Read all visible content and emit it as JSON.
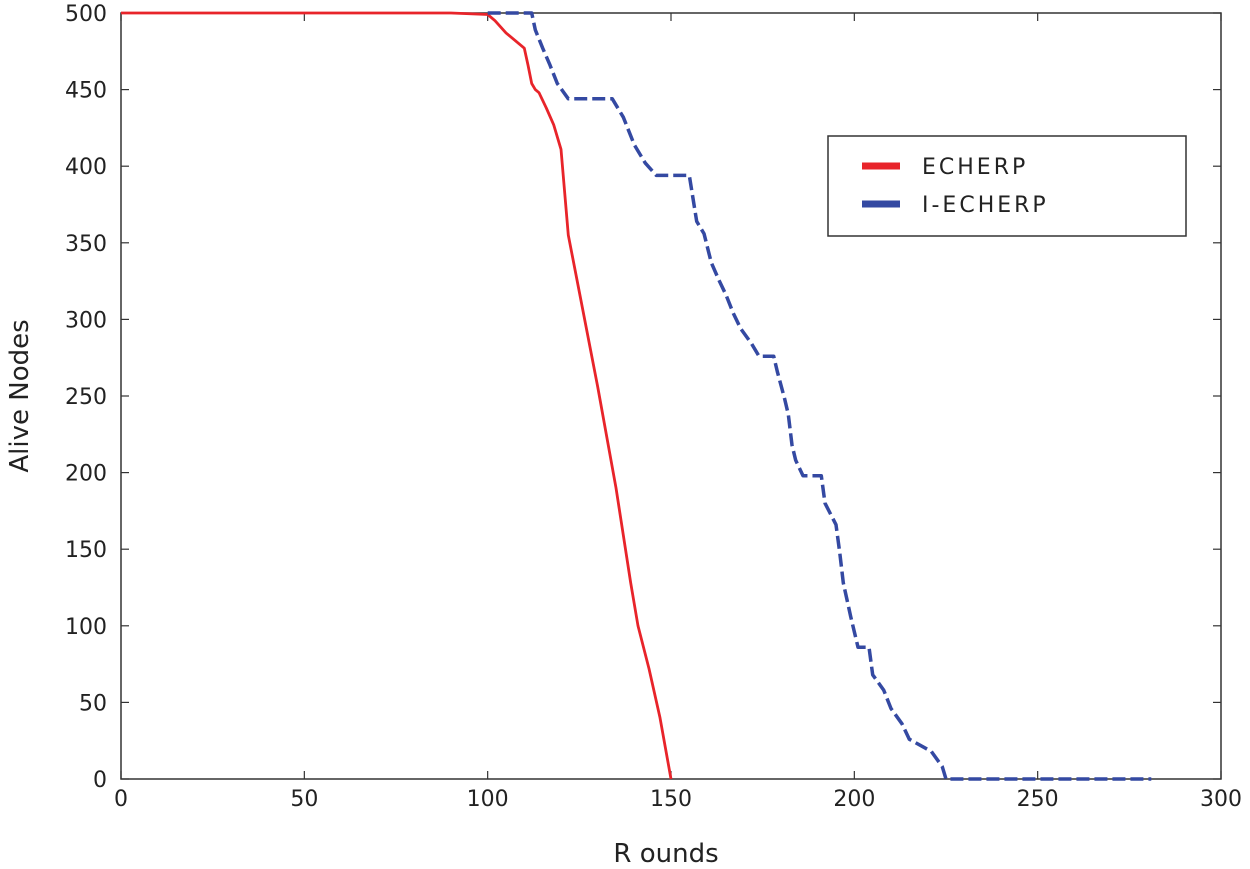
{
  "chart_data": {
    "type": "line",
    "xlabel": "R ounds",
    "ylabel": "Alive Nodes",
    "xlim": [
      0,
      300
    ],
    "ylim": [
      0,
      500
    ],
    "xticks": [
      0,
      50,
      100,
      150,
      200,
      250,
      300
    ],
    "yticks": [
      0,
      50,
      100,
      150,
      200,
      250,
      300,
      350,
      400,
      450,
      500
    ],
    "grid": false,
    "legend_position": "top-right",
    "series": [
      {
        "name": "ECHERP",
        "color": "#e8242a",
        "style": "solid",
        "points": [
          [
            0,
            500
          ],
          [
            90,
            500
          ],
          [
            100,
            499
          ],
          [
            102,
            495
          ],
          [
            105,
            487
          ],
          [
            110,
            477
          ],
          [
            111,
            466
          ],
          [
            112,
            454
          ],
          [
            113,
            450
          ],
          [
            114,
            448
          ],
          [
            116,
            438
          ],
          [
            118,
            427
          ],
          [
            120,
            411
          ],
          [
            122,
            355
          ],
          [
            125,
            318
          ],
          [
            130,
            256
          ],
          [
            135,
            190
          ],
          [
            139,
            128
          ],
          [
            141,
            100
          ],
          [
            144,
            72
          ],
          [
            147,
            40
          ],
          [
            150,
            0
          ]
        ]
      },
      {
        "name": "I-ECHERP",
        "color": "#3449a2",
        "style": "dashes",
        "points": [
          [
            100,
            500
          ],
          [
            112,
            500
          ],
          [
            113,
            489
          ],
          [
            115,
            477
          ],
          [
            117,
            466
          ],
          [
            119,
            454
          ],
          [
            122,
            444
          ],
          [
            134,
            444
          ],
          [
            137,
            432
          ],
          [
            140,
            414
          ],
          [
            143,
            402
          ],
          [
            146,
            394
          ],
          [
            155,
            394
          ],
          [
            157,
            364
          ],
          [
            159,
            356
          ],
          [
            161,
            337
          ],
          [
            163,
            326
          ],
          [
            165,
            316
          ],
          [
            167,
            304
          ],
          [
            169,
            294
          ],
          [
            172,
            284
          ],
          [
            174,
            276
          ],
          [
            178,
            276
          ],
          [
            179,
            266
          ],
          [
            181,
            248
          ],
          [
            182,
            238
          ],
          [
            183,
            218
          ],
          [
            184,
            208
          ],
          [
            186,
            198
          ],
          [
            191,
            198
          ],
          [
            192,
            180
          ],
          [
            195,
            166
          ],
          [
            196,
            148
          ],
          [
            197,
            128
          ],
          [
            199,
            106
          ],
          [
            201,
            86
          ],
          [
            204,
            86
          ],
          [
            205,
            68
          ],
          [
            208,
            58
          ],
          [
            210,
            46
          ],
          [
            213,
            36
          ],
          [
            215,
            26
          ],
          [
            221,
            18
          ],
          [
            224,
            8
          ],
          [
            225,
            0
          ],
          [
            281,
            0
          ]
        ]
      }
    ]
  }
}
